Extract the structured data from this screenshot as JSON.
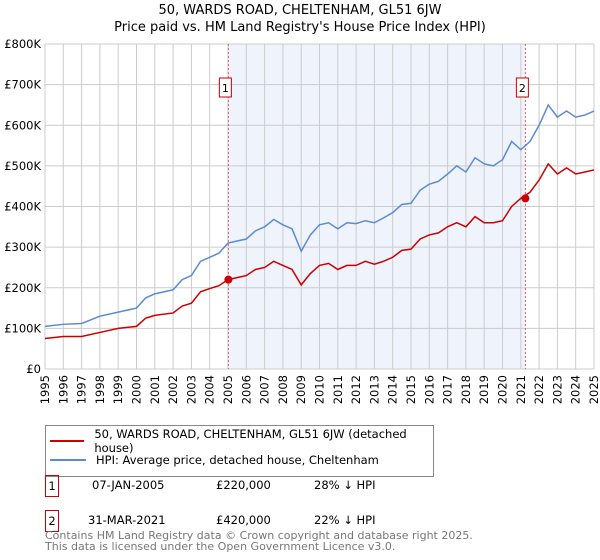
{
  "chart_data": {
    "type": "line",
    "title": "50, WARDS ROAD, CHELTENHAM, GL51 6JW",
    "subtitle": "Price paid vs. HM Land Registry's House Price Index (HPI)",
    "xlabel": "",
    "ylabel": "",
    "xlim": [
      1995,
      2025
    ],
    "ylim": [
      0,
      800000
    ],
    "yticks": [
      "£0",
      "£100K",
      "£200K",
      "£300K",
      "£400K",
      "£500K",
      "£600K",
      "£700K",
      "£800K"
    ],
    "xticks": [
      "1995",
      "1996",
      "1997",
      "1998",
      "1999",
      "2000",
      "2001",
      "2002",
      "2003",
      "2004",
      "2005",
      "2006",
      "2007",
      "2008",
      "2009",
      "2010",
      "2011",
      "2012",
      "2013",
      "2014",
      "2015",
      "2016",
      "2017",
      "2018",
      "2019",
      "2020",
      "2021",
      "2022",
      "2023",
      "2024",
      "2025"
    ],
    "grid": true,
    "shaded_range": [
      2005.02,
      2021.25
    ],
    "x": [
      1995,
      1996,
      1997,
      1998,
      1999,
      2000,
      2000.5,
      2001,
      2002,
      2002.5,
      2003,
      2003.5,
      2004,
      2004.5,
      2005,
      2005.5,
      2006,
      2006.5,
      2007,
      2007.5,
      2008,
      2008.5,
      2009,
      2009.5,
      2010,
      2010.5,
      2011,
      2011.5,
      2012,
      2012.5,
      2013,
      2013.5,
      2014,
      2014.5,
      2015,
      2015.5,
      2016,
      2016.5,
      2017,
      2017.5,
      2018,
      2018.5,
      2019,
      2019.5,
      2020,
      2020.5,
      2021,
      2021.5,
      2022,
      2022.5,
      2023,
      2023.5,
      2024,
      2024.5,
      2025
    ],
    "series": [
      {
        "name": "50, WARDS ROAD, CHELTENHAM, GL51 6JW (detached house)",
        "color": "#cc0000",
        "values": [
          75,
          80,
          80,
          90,
          100,
          105,
          125,
          132,
          138,
          155,
          162,
          190,
          198,
          205,
          220,
          225,
          230,
          245,
          250,
          265,
          255,
          245,
          207,
          235,
          255,
          260,
          245,
          255,
          255,
          265,
          258,
          265,
          275,
          292,
          295,
          320,
          330,
          335,
          350,
          360,
          350,
          375,
          360,
          360,
          365,
          400,
          420,
          435,
          465,
          505,
          480,
          495,
          480,
          485,
          490
        ]
      },
      {
        "name": "HPI: Average price, detached house, Cheltenham",
        "color": "#5b8bd0",
        "values": [
          105,
          110,
          112,
          130,
          140,
          150,
          175,
          185,
          195,
          220,
          230,
          265,
          275,
          285,
          310,
          315,
          320,
          340,
          350,
          368,
          355,
          345,
          290,
          330,
          355,
          360,
          345,
          360,
          358,
          365,
          360,
          372,
          385,
          405,
          408,
          440,
          455,
          462,
          480,
          500,
          485,
          520,
          505,
          500,
          515,
          560,
          540,
          560,
          600,
          650,
          620,
          635,
          620,
          625,
          635
        ]
      }
    ],
    "value_unit": "thousands GBP",
    "sales": [
      {
        "num": "1",
        "x": 2005.02,
        "value": 220,
        "date": "07-JAN-2005",
        "price": "£220,000",
        "hpi": "28% ↓ HPI"
      },
      {
        "num": "2",
        "x": 2021.25,
        "value": 420,
        "date": "31-MAR-2021",
        "price": "£420,000",
        "hpi": "22% ↓ HPI"
      }
    ]
  },
  "footer": {
    "line1": "Contains HM Land Registry data © Crown copyright and database right 2025.",
    "line2": "This data is licensed under the Open Government Licence v3.0."
  }
}
